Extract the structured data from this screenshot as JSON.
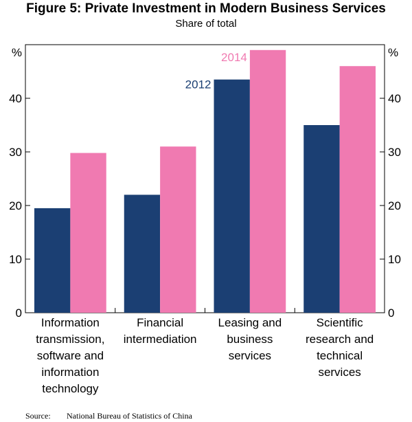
{
  "title": "Figure 5: Private Investment in Modern Business Services",
  "subtitle": "Share of total",
  "source_label": "Source:",
  "source_text": "National Bureau of Statistics of China",
  "colors": {
    "series_2012": "#1b3f73",
    "series_2014": "#f07ab1"
  },
  "chart_data": {
    "type": "bar",
    "ylabel_left": "%",
    "ylabel_right": "%",
    "ylim": [
      0,
      50
    ],
    "yticks": [
      0,
      10,
      20,
      30,
      40
    ],
    "grid": false,
    "categories": [
      [
        "Information",
        "transmission,",
        "software and",
        "information",
        "technology"
      ],
      [
        "Financial",
        "intermediation"
      ],
      [
        "Leasing and",
        "business",
        "services"
      ],
      [
        "Scientific",
        "research and",
        "technical",
        "services"
      ]
    ],
    "series": [
      {
        "name": "2012",
        "values": [
          19.5,
          22.0,
          43.5,
          35.0
        ]
      },
      {
        "name": "2014",
        "values": [
          29.8,
          31.0,
          49.0,
          46.0
        ]
      }
    ]
  }
}
